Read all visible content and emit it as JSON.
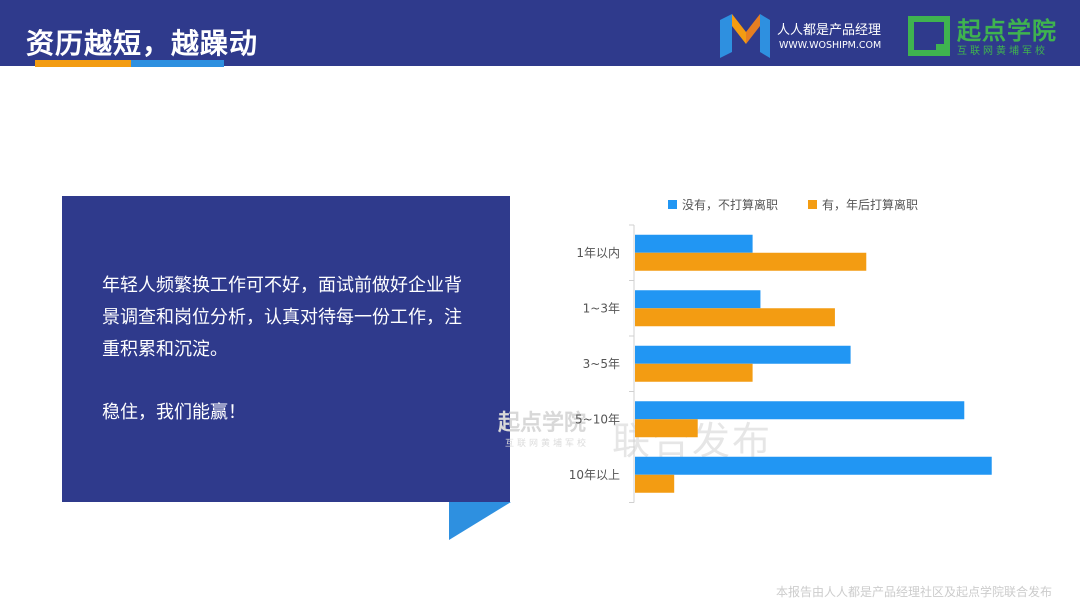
{
  "header": {
    "title": "资历越短，越躁动",
    "logo1_name": "人人都是产品经理",
    "logo1_url": "WWW.WOSHIPM.COM",
    "logo2_name": "起点学院",
    "logo2_tag": "互联网黄埔军校"
  },
  "textbox": {
    "paragraph": "年轻人频繁换工作可不好，面试前做好企业背景调查和岗位分析，认真对待每一份工作，注重积累和沉淀。",
    "tagline": "稳住，我们能赢！"
  },
  "watermark": {
    "logo": "起点学院",
    "tag": "互联网黄埔军校",
    "text": "联合发布"
  },
  "footer": "本报告由人人都是产品经理社区及起点学院联合发布",
  "colors": {
    "navy": "#2f3a8c",
    "series_blue": "#2196f3",
    "series_orange": "#f39c12",
    "green": "#3fb34f"
  },
  "chart_data": {
    "type": "bar",
    "orientation": "horizontal",
    "categories": [
      "1年以内",
      "1~3年",
      "3~5年",
      "5~10年",
      "10年以上"
    ],
    "series": [
      {
        "name": "没有，不打算离职",
        "color": "#2196f3",
        "values": [
          30,
          32,
          55,
          84,
          91
        ]
      },
      {
        "name": "有，年后打算离职",
        "color": "#f39c12",
        "values": [
          59,
          51,
          30,
          16,
          10
        ]
      }
    ],
    "xlim": [
      0,
      100
    ],
    "grid": false,
    "legend_position": "top"
  }
}
